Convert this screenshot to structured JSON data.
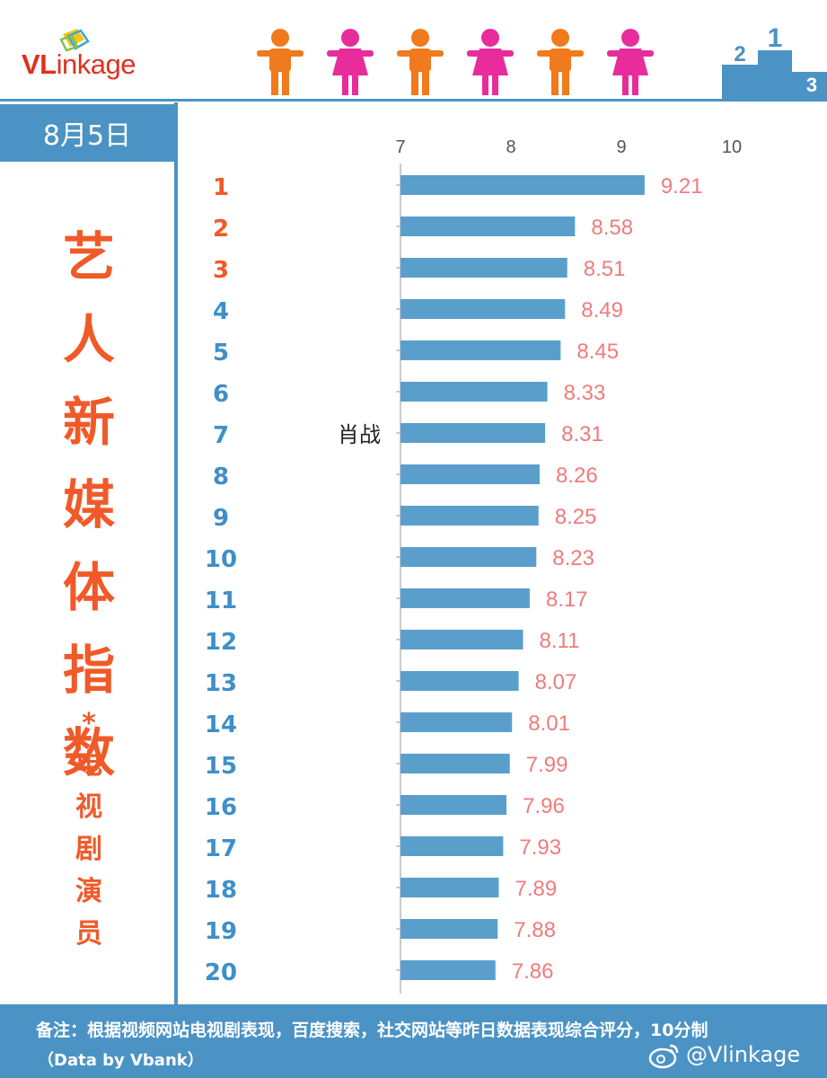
{
  "header": {
    "logo": {
      "prefix": "VL",
      "rest": "inkage"
    }
  },
  "left_panel": {
    "date": "8月5日",
    "title_chars": [
      "艺",
      "人",
      "新",
      "媒",
      "体",
      "指",
      "数"
    ],
    "star": "*",
    "subtitle_chars": [
      "电",
      "视",
      "剧",
      "演",
      "员"
    ]
  },
  "chart_data": {
    "type": "bar",
    "orientation": "horizontal",
    "categories": [
      "1",
      "2",
      "3",
      "4",
      "5",
      "6",
      "7",
      "8",
      "9",
      "10",
      "11",
      "12",
      "13",
      "14",
      "15",
      "16",
      "17",
      "18",
      "19",
      "20"
    ],
    "values": [
      9.21,
      8.58,
      8.51,
      8.49,
      8.45,
      8.33,
      8.31,
      8.26,
      8.25,
      8.23,
      8.17,
      8.11,
      8.07,
      8.01,
      7.99,
      7.96,
      7.93,
      7.89,
      7.88,
      7.86
    ],
    "value_labels": [
      "9.21",
      "8.58",
      "8.51",
      "8.49",
      "8.45",
      "8.33",
      "8.31",
      "8.26",
      "8.25",
      "8.23",
      "8.17",
      "8.11",
      "8.07",
      "8.01",
      "7.99",
      "7.96",
      "7.93",
      "7.89",
      "7.88",
      "7.86"
    ],
    "annotation": {
      "text": "肖战",
      "rank": "7"
    },
    "xlim": [
      7,
      10
    ],
    "x_ticks": [
      "7",
      "8",
      "9",
      "10"
    ],
    "grid": false,
    "colors": {
      "bar": "#5a9fcc",
      "value_label": "#f07b7b",
      "rank_top": "#f05a28",
      "rank_rest": "#3f8fc8",
      "tick": "#555555",
      "axis": "#bbbbbb"
    }
  },
  "footer": {
    "note": "备注：根据视频网站电视剧表现，百度搜索，社交网站等昨日数据表现综合评分，10分制",
    "source": "（Data by Vbank）",
    "weibo": "@Vlinkage",
    "weibo_icon": "weibo-icon"
  }
}
